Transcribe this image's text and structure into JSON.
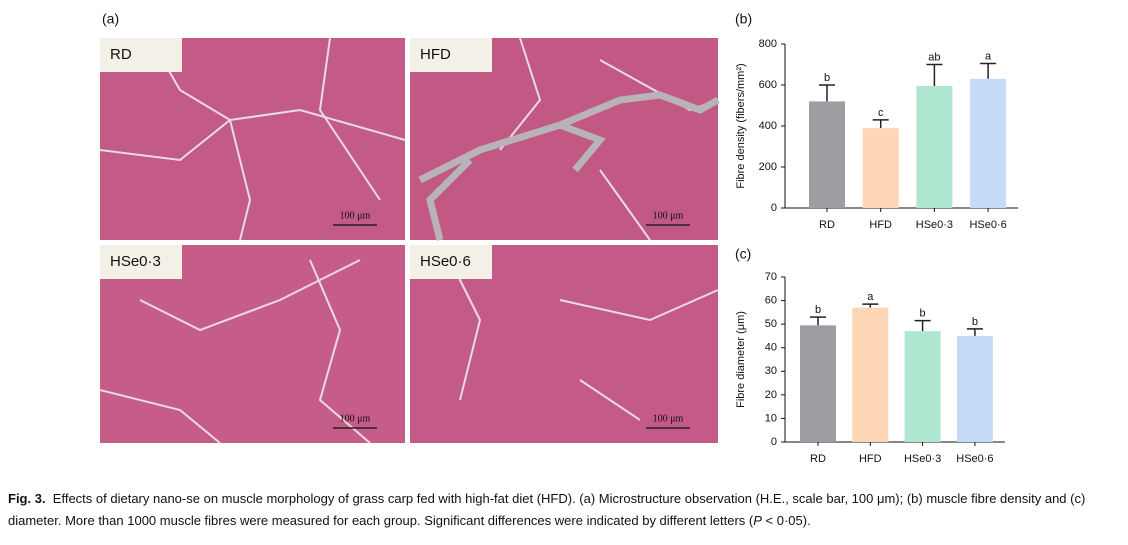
{
  "figure": {
    "panel_a": "(a)",
    "images": [
      "RD",
      "HFD",
      "HSe0·3",
      "HSe0·6"
    ],
    "scale_bar": "100 μm"
  },
  "chart_data": [
    {
      "type": "bar",
      "panel": "(b)",
      "ylabel": "Fibre density (fibers/mm²)",
      "categories": [
        "RD",
        "HFD",
        "HSe0·3",
        "HSe0·6"
      ],
      "values": [
        520,
        390,
        595,
        630
      ],
      "errors": [
        80,
        40,
        105,
        75
      ],
      "letters": [
        "b",
        "c",
        "ab",
        "a"
      ],
      "colors": [
        "#9e9ea2",
        "#fdd6b5",
        "#aee6cf",
        "#c5dbf7"
      ],
      "ylim": [
        0,
        800
      ],
      "yticks": [
        0,
        200,
        400,
        600,
        800
      ]
    },
    {
      "type": "bar",
      "panel": "(c)",
      "ylabel": "Fibre diameter (μm)",
      "categories": [
        "RD",
        "HFD",
        "HSe0·3",
        "HSe0·6"
      ],
      "values": [
        49.5,
        57,
        47,
        45
      ],
      "errors": [
        3.5,
        1.5,
        4.5,
        3
      ],
      "letters": [
        "b",
        "a",
        "b",
        "b"
      ],
      "colors": [
        "#9e9ea2",
        "#fdd6b5",
        "#aee6cf",
        "#c5dbf7"
      ],
      "ylim": [
        0,
        70
      ],
      "yticks": [
        0,
        10,
        20,
        30,
        40,
        50,
        60,
        70
      ]
    }
  ],
  "caption": {
    "label": "Fig. 3.",
    "text": "Effects of dietary nano-se on muscle morphology of grass carp fed with high-fat diet (HFD). (a) Microstructure observation (H.E., scale bar, 100 μm); (b) muscle fibre density and (c) diameter. More than 1000 muscle fibres were measured for each group. Significant differences were indicated by different letters (",
    "italic": "P",
    "end": " < 0·05)."
  }
}
